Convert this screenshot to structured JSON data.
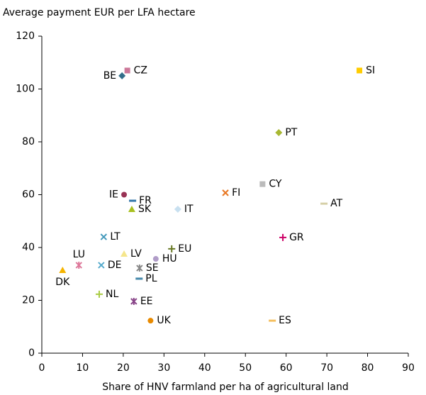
{
  "chart_data": {
    "type": "scatter",
    "y_label": "Average payment EUR per LFA hectare",
    "x_label": "Share of HNV farmland per ha of agricultural land",
    "xlim": [
      0,
      90
    ],
    "xticks": [
      0,
      10,
      20,
      30,
      40,
      50,
      60,
      70,
      80,
      90
    ],
    "ylim": [
      0,
      120
    ],
    "yticks": [
      0,
      20,
      40,
      60,
      80,
      100,
      120
    ],
    "grid": false,
    "series": [
      {
        "name": "SI",
        "color": "#ffcc00",
        "marker": "square",
        "x": [
          78
        ],
        "values": [
          107
        ]
      },
      {
        "name": "CZ",
        "color": "#cc7799",
        "marker": "square",
        "x": [
          21
        ],
        "values": [
          107
        ]
      },
      {
        "name": "BE",
        "color": "#336e8a",
        "marker": "diamond",
        "x": [
          19.7
        ],
        "values": [
          105
        ]
      },
      {
        "name": "PT",
        "color": "#a8b832",
        "marker": "diamond",
        "x": [
          58.2
        ],
        "values": [
          83.5
        ]
      },
      {
        "name": "CY",
        "color": "#bbbbbb",
        "marker": "square",
        "x": [
          54.2
        ],
        "values": [
          64
        ]
      },
      {
        "name": "FI",
        "color": "#e87722",
        "marker": "x",
        "x": [
          45.1
        ],
        "values": [
          60.7
        ]
      },
      {
        "name": "AT",
        "color": "#d6d0a8",
        "marker": "dash",
        "x": [
          69.3
        ],
        "values": [
          56.6
        ]
      },
      {
        "name": "IE",
        "color": "#993355",
        "marker": "circle",
        "x": [
          20.2
        ],
        "values": [
          60
        ]
      },
      {
        "name": "FR",
        "color": "#3377aa",
        "marker": "dash",
        "x": [
          22.3
        ],
        "values": [
          57.7
        ]
      },
      {
        "name": "SK",
        "color": "#a8c020",
        "marker": "triangle",
        "x": [
          22.1
        ],
        "values": [
          54.5
        ]
      },
      {
        "name": "IT",
        "color": "#c8e0f0",
        "marker": "diamond",
        "x": [
          33.4
        ],
        "values": [
          54.5
        ]
      },
      {
        "name": "LT",
        "color": "#4499bb",
        "marker": "x",
        "x": [
          15.2
        ],
        "values": [
          44
        ]
      },
      {
        "name": "GR",
        "color": "#cc0066",
        "marker": "plus",
        "x": [
          59.2
        ],
        "values": [
          43.8
        ]
      },
      {
        "name": "EU",
        "color": "#667722",
        "marker": "plus",
        "x": [
          31.9
        ],
        "values": [
          39.5
        ]
      },
      {
        "name": "LV",
        "color": "#f5e68c",
        "marker": "triangle",
        "x": [
          20.2
        ],
        "values": [
          37.6
        ]
      },
      {
        "name": "HU",
        "color": "#b09cc8",
        "marker": "circle",
        "x": [
          28
        ],
        "values": [
          35.7
        ]
      },
      {
        "name": "LU",
        "color": "#dd7799",
        "marker": "star",
        "x": [
          9.1
        ],
        "values": [
          33.3
        ]
      },
      {
        "name": "DE",
        "color": "#55aacc",
        "marker": "x",
        "x": [
          14.6
        ],
        "values": [
          33.3
        ]
      },
      {
        "name": "SE",
        "color": "#888888",
        "marker": "star",
        "x": [
          24
        ],
        "values": [
          32.2
        ]
      },
      {
        "name": "DK",
        "color": "#f5b400",
        "marker": "triangle",
        "x": [
          5.1
        ],
        "values": [
          31.4
        ]
      },
      {
        "name": "PL",
        "color": "#4488aa",
        "marker": "dash",
        "x": [
          23.9
        ],
        "values": [
          28.2
        ]
      },
      {
        "name": "NL",
        "color": "#aacc44",
        "marker": "plus",
        "x": [
          14.1
        ],
        "values": [
          22.3
        ]
      },
      {
        "name": "EE",
        "color": "#884488",
        "marker": "star",
        "x": [
          22.6
        ],
        "values": [
          19.6
        ]
      },
      {
        "name": "UK",
        "color": "#e88a00",
        "marker": "circle",
        "x": [
          26.7
        ],
        "values": [
          12.3
        ]
      },
      {
        "name": "ES",
        "color": "#f5c060",
        "marker": "dash",
        "x": [
          56.6
        ],
        "values": [
          12.3
        ]
      }
    ]
  }
}
